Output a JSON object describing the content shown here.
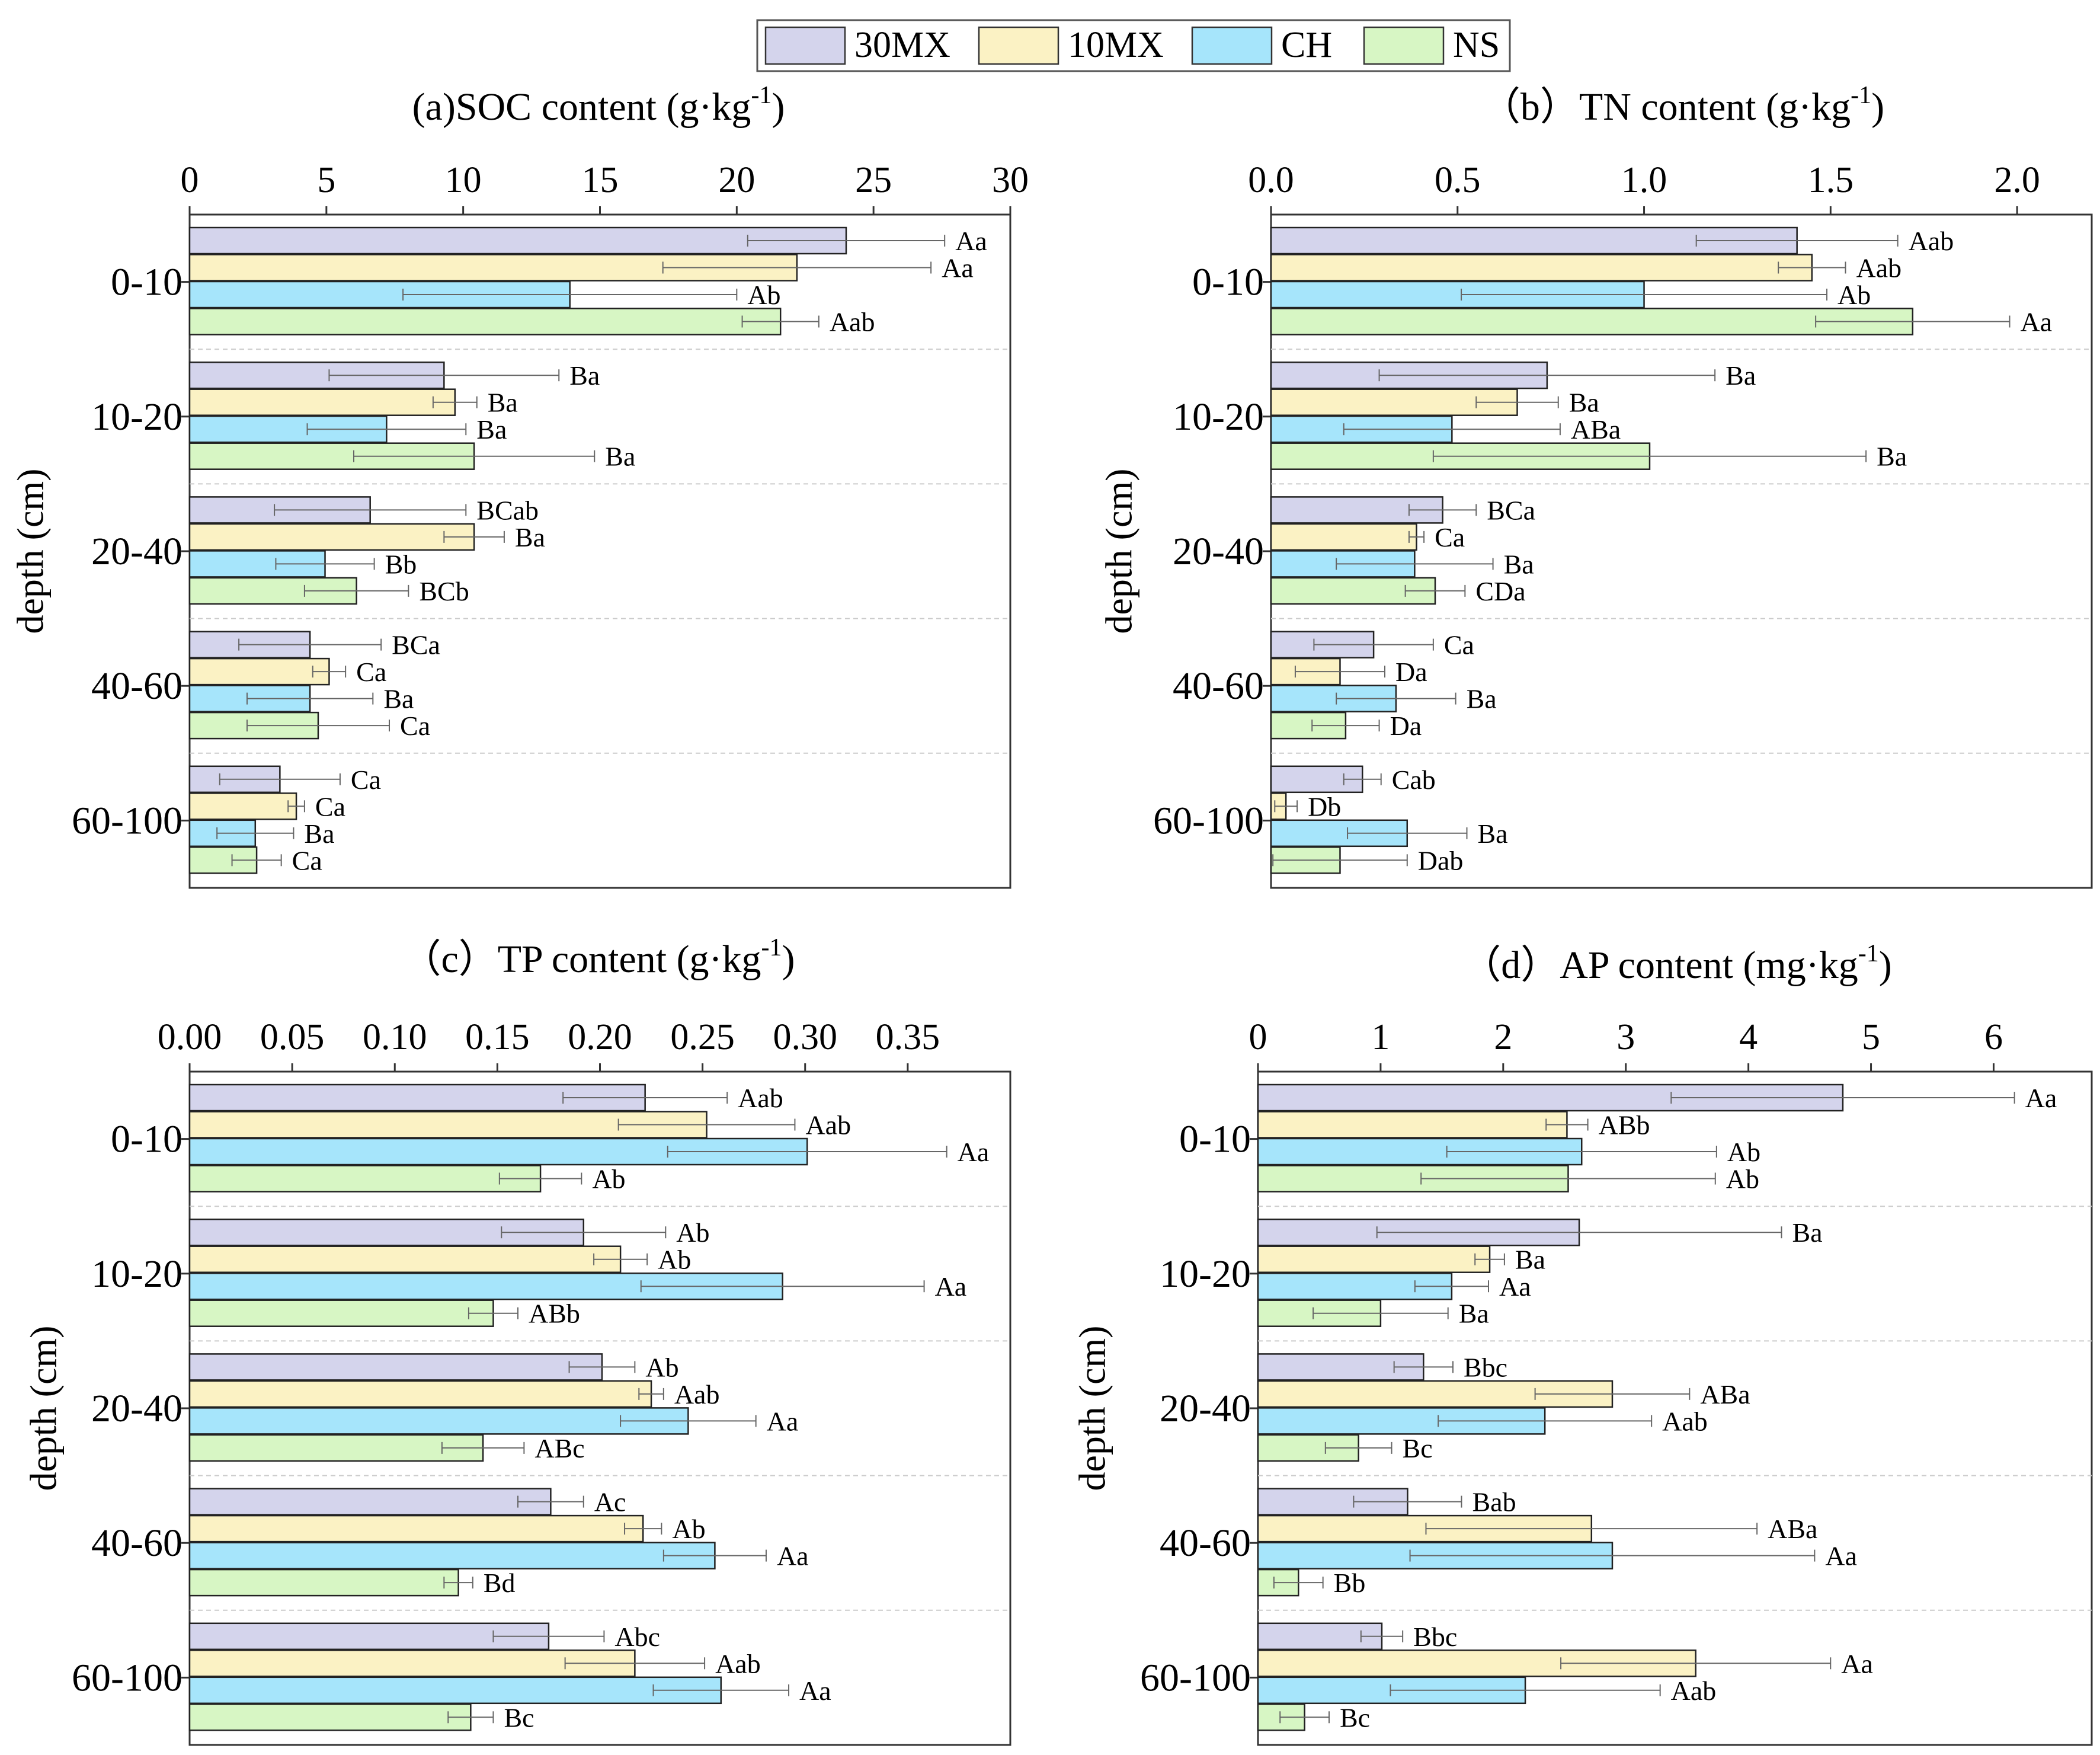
{
  "legend": [
    {
      "name": "30MX",
      "color": "#d4d4ec"
    },
    {
      "name": "10MX",
      "color": "#fbf2c4"
    },
    {
      "name": "CH",
      "color": "#a6e5fb"
    },
    {
      "name": "NS",
      "color": "#d7f6c4"
    }
  ],
  "chart_data": [
    {
      "type": "bar",
      "orientation": "horizontal",
      "title": "(a)SOC content (g·kg",
      "title_sup": "-1",
      "title_end": ")",
      "ylabel": "depth (cm)",
      "xlim": [
        0,
        30
      ],
      "xticks": [
        0,
        5,
        10,
        15,
        20,
        25,
        30
      ],
      "xtick_labels": [
        "0",
        "5",
        "10",
        "15",
        "20",
        "25",
        "30"
      ],
      "categories": [
        "0-10",
        "10-20",
        "20-40",
        "40-60",
        "60-100"
      ],
      "series": [
        {
          "name": "30MX",
          "values": [
            24.0,
            9.3,
            6.6,
            4.4,
            3.3
          ],
          "errors": [
            3.6,
            4.2,
            3.5,
            2.6,
            2.2
          ],
          "labels": [
            "Aa",
            "Ba",
            "BCab",
            "BCa",
            "Ca"
          ]
        },
        {
          "name": "10MX",
          "values": [
            22.2,
            9.7,
            10.4,
            5.1,
            3.9
          ],
          "errors": [
            4.9,
            0.8,
            1.1,
            0.6,
            0.3
          ],
          "labels": [
            "Aa",
            "Ba",
            "Ba",
            "Ca",
            "Ca"
          ]
        },
        {
          "name": "CH",
          "values": [
            13.9,
            7.2,
            4.95,
            4.4,
            2.4
          ],
          "errors": [
            6.1,
            2.9,
            1.8,
            2.3,
            1.4
          ],
          "labels": [
            "Ab",
            "Ba",
            "Bb",
            "Ba",
            "Ba"
          ]
        },
        {
          "name": "NS",
          "values": [
            21.6,
            10.4,
            6.1,
            4.7,
            2.45
          ],
          "errors": [
            1.4,
            4.4,
            1.9,
            2.6,
            0.9
          ],
          "labels": [
            "Aab",
            "Ba",
            "BCb",
            "Ca",
            "Ca"
          ]
        }
      ]
    },
    {
      "type": "bar",
      "orientation": "horizontal",
      "title": "（b）TN content (g·kg",
      "title_sup": "-1",
      "title_end": ")",
      "ylabel": "depth (cm)",
      "xlim": [
        0,
        2.2
      ],
      "xticks": [
        0,
        0.5,
        1.0,
        1.5,
        2.0
      ],
      "xtick_labels": [
        "0.0",
        "0.5",
        "1.0",
        "1.5",
        "2.0"
      ],
      "categories": [
        "0-10",
        "10-20",
        "20-40",
        "40-60",
        "60-100"
      ],
      "series": [
        {
          "name": "30MX",
          "values": [
            1.41,
            0.74,
            0.46,
            0.275,
            0.245
          ],
          "errors": [
            0.27,
            0.45,
            0.09,
            0.16,
            0.05
          ],
          "labels": [
            "Aab",
            "Ba",
            "BCa",
            "Ca",
            "Cab"
          ]
        },
        {
          "name": "10MX",
          "values": [
            1.45,
            0.66,
            0.39,
            0.185,
            0.04
          ],
          "errors": [
            0.09,
            0.11,
            0.02,
            0.12,
            0.03
          ],
          "labels": [
            "Aab",
            "Ba",
            "Ca",
            "Da",
            "Db"
          ]
        },
        {
          "name": "CH",
          "values": [
            1.0,
            0.485,
            0.385,
            0.335,
            0.365
          ],
          "errors": [
            0.49,
            0.29,
            0.21,
            0.16,
            0.16
          ],
          "labels": [
            "Ab",
            "ABa",
            "Ba",
            "Ba",
            "Ba"
          ]
        },
        {
          "name": "NS",
          "values": [
            1.72,
            1.015,
            0.44,
            0.2,
            0.185
          ],
          "errors": [
            0.26,
            0.58,
            0.08,
            0.09,
            0.18
          ],
          "labels": [
            "Aa",
            "Ba",
            "CDa",
            "Da",
            "Dab"
          ]
        }
      ]
    },
    {
      "type": "bar",
      "orientation": "horizontal",
      "title": "（c）TP content (g·kg",
      "title_sup": "-1",
      "title_end": ")",
      "ylabel": "depth (cm)",
      "xlim": [
        0,
        0.4
      ],
      "xticks": [
        0,
        0.05,
        0.1,
        0.15,
        0.2,
        0.25,
        0.3,
        0.35
      ],
      "xtick_labels": [
        "0.00",
        "0.05",
        "0.10",
        "0.15",
        "0.20",
        "0.25",
        "0.30",
        "0.35"
      ],
      "categories": [
        "0-10",
        "10-20",
        "20-40",
        "40-60",
        "60-100"
      ],
      "series": [
        {
          "name": "30MX",
          "values": [
            0.222,
            0.192,
            0.201,
            0.176,
            0.175
          ],
          "errors": [
            0.04,
            0.04,
            0.016,
            0.016,
            0.027
          ],
          "labels": [
            "Aab",
            "Ab",
            "Ab",
            "Ac",
            "Abc"
          ]
        },
        {
          "name": "10MX",
          "values": [
            0.252,
            0.21,
            0.225,
            0.221,
            0.217
          ],
          "errors": [
            0.043,
            0.013,
            0.006,
            0.009,
            0.034
          ],
          "labels": [
            "Aab",
            "Ab",
            "Aab",
            "Ab",
            "Aab"
          ]
        },
        {
          "name": "CH",
          "values": [
            0.301,
            0.289,
            0.243,
            0.256,
            0.259
          ],
          "errors": [
            0.068,
            0.069,
            0.033,
            0.025,
            0.033
          ],
          "labels": [
            "Aa",
            "Aa",
            "Aa",
            "Aa",
            "Aa"
          ]
        },
        {
          "name": "NS",
          "values": [
            0.171,
            0.148,
            0.143,
            0.131,
            0.137
          ],
          "errors": [
            0.02,
            0.012,
            0.02,
            0.007,
            0.011
          ],
          "labels": [
            "Ab",
            "ABb",
            "ABc",
            "Bd",
            "Bc"
          ]
        }
      ]
    },
    {
      "type": "bar",
      "orientation": "horizontal",
      "title": "（d）AP content (mg·kg",
      "title_sup": "-1",
      "title_end": ")",
      "ylabel": "depth (cm)",
      "xlim": [
        0,
        6.8
      ],
      "xticks": [
        0,
        1,
        2,
        3,
        4,
        5,
        6
      ],
      "xtick_labels": [
        "0",
        "1",
        "2",
        "3",
        "4",
        "5",
        "6"
      ],
      "categories": [
        "0-10",
        "10-20",
        "20-40",
        "40-60",
        "60-100"
      ],
      "series": [
        {
          "name": "30MX",
          "values": [
            4.77,
            2.62,
            1.35,
            1.22,
            1.01
          ],
          "errors": [
            1.4,
            1.65,
            0.24,
            0.44,
            0.17
          ],
          "labels": [
            "Aa",
            "Ba",
            "Bbc",
            "Bab",
            "Bbc"
          ]
        },
        {
          "name": "10MX",
          "values": [
            2.52,
            1.89,
            2.89,
            2.72,
            3.57
          ],
          "errors": [
            0.17,
            0.12,
            0.63,
            1.35,
            1.1
          ],
          "labels": [
            "ABb",
            "Ba",
            "ABa",
            "ABa",
            "Aa"
          ]
        },
        {
          "name": "CH",
          "values": [
            2.64,
            1.58,
            2.34,
            2.89,
            2.18
          ],
          "errors": [
            1.1,
            0.3,
            0.87,
            1.65,
            1.1
          ],
          "labels": [
            "Ab",
            "Aa",
            "Aab",
            "Aa",
            "Aab"
          ]
        },
        {
          "name": "NS",
          "values": [
            2.53,
            1.0,
            0.82,
            0.33,
            0.38
          ],
          "errors": [
            1.2,
            0.55,
            0.27,
            0.2,
            0.2
          ],
          "labels": [
            "Ab",
            "Ba",
            "Bc",
            "Bb",
            "Bc"
          ]
        }
      ]
    }
  ]
}
